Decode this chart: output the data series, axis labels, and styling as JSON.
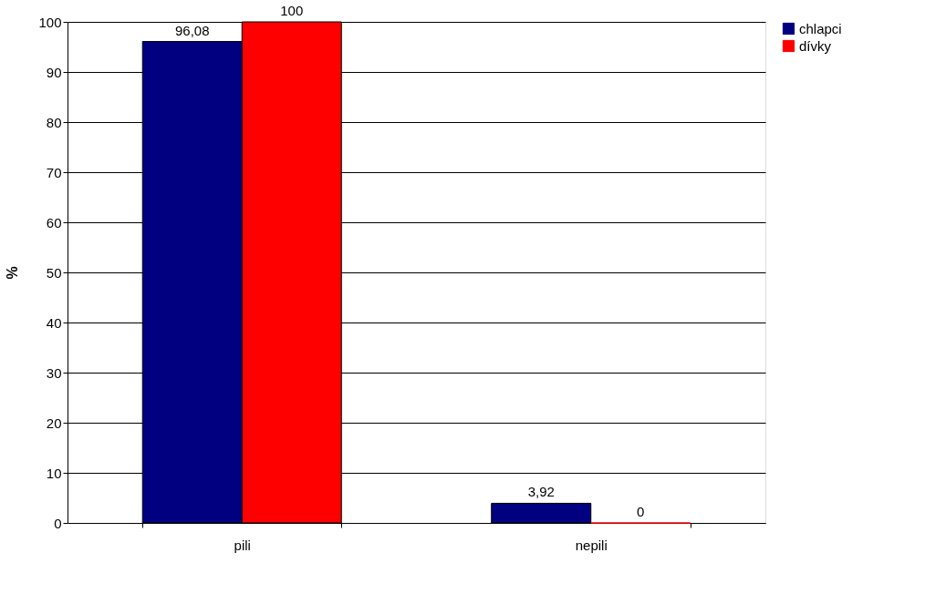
{
  "chart_data": {
    "type": "bar",
    "ylabel": "%",
    "categories": [
      "pili",
      "nepili"
    ],
    "series": [
      {
        "name": "chlapci",
        "color": "#000080",
        "values": [
          96.08,
          3.92
        ],
        "value_labels": [
          "96,08",
          "3,92"
        ]
      },
      {
        "name": "dívky",
        "color": "#ff0000",
        "values": [
          100,
          0
        ],
        "value_labels": [
          "100",
          "0"
        ]
      }
    ],
    "ylim": [
      0,
      100
    ],
    "yticks": [
      0,
      10,
      20,
      30,
      40,
      50,
      60,
      70,
      80,
      90,
      100
    ],
    "grid": "y",
    "legend": "right"
  }
}
